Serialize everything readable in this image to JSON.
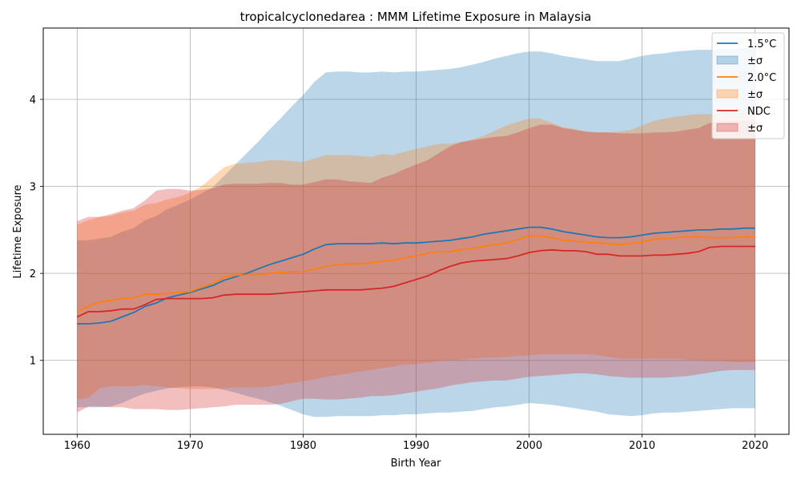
{
  "chart_data": {
    "type": "line",
    "title": "tropicalcyclonedarea : MMM Lifetime Exposure in Malaysia",
    "xlabel": "Birth Year",
    "ylabel": "Lifetime Exposure",
    "xlim": [
      1957,
      2023
    ],
    "ylim": [
      0.15,
      4.82
    ],
    "xticks": [
      1960,
      1970,
      1980,
      1990,
      2000,
      2010,
      2020
    ],
    "yticks": [
      1,
      2,
      3,
      4
    ],
    "grid": true,
    "legend_position": "top-right",
    "x": [
      1960,
      1961,
      1962,
      1963,
      1964,
      1965,
      1966,
      1967,
      1968,
      1969,
      1970,
      1971,
      1972,
      1973,
      1974,
      1975,
      1976,
      1977,
      1978,
      1979,
      1980,
      1981,
      1982,
      1983,
      1984,
      1985,
      1986,
      1987,
      1988,
      1989,
      1990,
      1991,
      1992,
      1993,
      1994,
      1995,
      1996,
      1997,
      1998,
      1999,
      2000,
      2001,
      2002,
      2003,
      2004,
      2005,
      2006,
      2007,
      2008,
      2009,
      2010,
      2011,
      2012,
      2013,
      2014,
      2015,
      2016,
      2017,
      2018,
      2019,
      2020
    ],
    "series": [
      {
        "name": "1.5°C",
        "band_label": "±σ",
        "color": "#1f77b4",
        "values": [
          1.42,
          1.42,
          1.43,
          1.45,
          1.5,
          1.55,
          1.62,
          1.66,
          1.72,
          1.75,
          1.78,
          1.82,
          1.86,
          1.92,
          1.96,
          2.0,
          2.05,
          2.1,
          2.14,
          2.18,
          2.22,
          2.28,
          2.33,
          2.34,
          2.34,
          2.34,
          2.34,
          2.35,
          2.34,
          2.35,
          2.35,
          2.36,
          2.37,
          2.38,
          2.4,
          2.42,
          2.45,
          2.47,
          2.49,
          2.51,
          2.53,
          2.53,
          2.51,
          2.48,
          2.46,
          2.44,
          2.42,
          2.41,
          2.41,
          2.42,
          2.44,
          2.46,
          2.47,
          2.48,
          2.49,
          2.5,
          2.5,
          2.51,
          2.51,
          2.52,
          2.52
        ],
        "upper": [
          2.38,
          2.38,
          2.4,
          2.42,
          2.48,
          2.52,
          2.61,
          2.66,
          2.74,
          2.79,
          2.85,
          2.92,
          2.99,
          3.12,
          3.25,
          3.38,
          3.51,
          3.65,
          3.78,
          3.92,
          4.05,
          4.2,
          4.31,
          4.32,
          4.32,
          4.31,
          4.31,
          4.32,
          4.31,
          4.32,
          4.32,
          4.33,
          4.34,
          4.35,
          4.37,
          4.4,
          4.43,
          4.47,
          4.5,
          4.53,
          4.55,
          4.55,
          4.53,
          4.5,
          4.48,
          4.46,
          4.44,
          4.44,
          4.44,
          4.47,
          4.5,
          4.52,
          4.53,
          4.55,
          4.56,
          4.57,
          4.57,
          4.58,
          4.58,
          4.59,
          4.59
        ],
        "lower": [
          0.46,
          0.46,
          0.46,
          0.47,
          0.51,
          0.57,
          0.62,
          0.65,
          0.68,
          0.69,
          0.7,
          0.7,
          0.69,
          0.66,
          0.63,
          0.59,
          0.56,
          0.52,
          0.48,
          0.43,
          0.38,
          0.35,
          0.35,
          0.36,
          0.36,
          0.36,
          0.36,
          0.37,
          0.37,
          0.38,
          0.38,
          0.39,
          0.4,
          0.4,
          0.41,
          0.42,
          0.44,
          0.46,
          0.47,
          0.49,
          0.51,
          0.5,
          0.49,
          0.47,
          0.45,
          0.43,
          0.41,
          0.38,
          0.37,
          0.36,
          0.37,
          0.39,
          0.4,
          0.4,
          0.41,
          0.42,
          0.43,
          0.44,
          0.45,
          0.45,
          0.45
        ]
      },
      {
        "name": "2.0°C",
        "band_label": "±σ",
        "color": "#ff7f0e",
        "values": [
          1.56,
          1.62,
          1.67,
          1.69,
          1.71,
          1.72,
          1.76,
          1.76,
          1.77,
          1.78,
          1.79,
          1.84,
          1.88,
          1.96,
          1.98,
          1.98,
          1.98,
          2.0,
          2.01,
          2.02,
          2.02,
          2.05,
          2.08,
          2.1,
          2.11,
          2.11,
          2.12,
          2.14,
          2.15,
          2.18,
          2.2,
          2.23,
          2.25,
          2.25,
          2.27,
          2.29,
          2.31,
          2.33,
          2.35,
          2.39,
          2.43,
          2.43,
          2.41,
          2.38,
          2.37,
          2.36,
          2.35,
          2.34,
          2.33,
          2.34,
          2.36,
          2.39,
          2.4,
          2.41,
          2.42,
          2.42,
          2.41,
          2.41,
          2.41,
          2.42,
          2.42
        ],
        "upper": [
          2.56,
          2.61,
          2.65,
          2.66,
          2.7,
          2.72,
          2.79,
          2.81,
          2.85,
          2.88,
          2.93,
          3.0,
          3.11,
          3.22,
          3.26,
          3.27,
          3.28,
          3.3,
          3.3,
          3.29,
          3.28,
          3.32,
          3.36,
          3.36,
          3.36,
          3.35,
          3.34,
          3.37,
          3.36,
          3.4,
          3.43,
          3.46,
          3.49,
          3.49,
          3.51,
          3.54,
          3.58,
          3.64,
          3.7,
          3.74,
          3.78,
          3.78,
          3.73,
          3.68,
          3.66,
          3.63,
          3.62,
          3.62,
          3.63,
          3.65,
          3.7,
          3.75,
          3.78,
          3.8,
          3.82,
          3.83,
          3.83,
          3.84,
          3.84,
          3.85,
          3.85
        ],
        "lower": [
          0.55,
          0.57,
          0.68,
          0.7,
          0.7,
          0.7,
          0.72,
          0.7,
          0.69,
          0.68,
          0.67,
          0.67,
          0.67,
          0.68,
          0.69,
          0.69,
          0.69,
          0.7,
          0.72,
          0.74,
          0.76,
          0.78,
          0.81,
          0.83,
          0.85,
          0.87,
          0.89,
          0.91,
          0.93,
          0.95,
          0.96,
          0.97,
          0.99,
          1.0,
          1.01,
          1.02,
          1.03,
          1.03,
          1.04,
          1.05,
          1.06,
          1.07,
          1.07,
          1.07,
          1.07,
          1.07,
          1.06,
          1.04,
          1.02,
          1.02,
          1.02,
          1.02,
          1.02,
          1.02,
          1.01,
          1.0,
          0.99,
          0.99,
          0.98,
          0.98,
          0.98
        ]
      },
      {
        "name": "NDC",
        "band_label": "±σ",
        "color": "#d62728",
        "values": [
          1.5,
          1.56,
          1.56,
          1.57,
          1.59,
          1.59,
          1.64,
          1.7,
          1.71,
          1.71,
          1.71,
          1.71,
          1.72,
          1.75,
          1.76,
          1.76,
          1.76,
          1.76,
          1.77,
          1.78,
          1.79,
          1.8,
          1.81,
          1.81,
          1.81,
          1.81,
          1.82,
          1.83,
          1.85,
          1.89,
          1.93,
          1.97,
          2.03,
          2.08,
          2.12,
          2.14,
          2.15,
          2.16,
          2.17,
          2.2,
          2.24,
          2.26,
          2.27,
          2.26,
          2.26,
          2.25,
          2.22,
          2.22,
          2.2,
          2.2,
          2.2,
          2.21,
          2.21,
          2.22,
          2.23,
          2.25,
          2.3,
          2.31,
          2.31,
          2.31,
          2.31
        ],
        "upper": [
          2.6,
          2.65,
          2.65,
          2.68,
          2.72,
          2.75,
          2.84,
          2.95,
          2.97,
          2.97,
          2.95,
          2.96,
          2.98,
          3.02,
          3.03,
          3.03,
          3.03,
          3.04,
          3.04,
          3.02,
          3.02,
          3.05,
          3.08,
          3.08,
          3.06,
          3.05,
          3.04,
          3.1,
          3.14,
          3.2,
          3.25,
          3.3,
          3.38,
          3.46,
          3.51,
          3.53,
          3.55,
          3.57,
          3.58,
          3.62,
          3.67,
          3.71,
          3.71,
          3.67,
          3.65,
          3.63,
          3.62,
          3.62,
          3.61,
          3.61,
          3.61,
          3.62,
          3.62,
          3.63,
          3.65,
          3.67,
          3.73,
          3.75,
          3.75,
          3.75,
          3.75
        ],
        "lower": [
          0.4,
          0.47,
          0.47,
          0.46,
          0.46,
          0.44,
          0.44,
          0.44,
          0.43,
          0.43,
          0.44,
          0.45,
          0.46,
          0.47,
          0.49,
          0.49,
          0.49,
          0.49,
          0.5,
          0.53,
          0.56,
          0.56,
          0.55,
          0.55,
          0.56,
          0.57,
          0.59,
          0.59,
          0.6,
          0.62,
          0.64,
          0.66,
          0.68,
          0.71,
          0.73,
          0.75,
          0.76,
          0.77,
          0.77,
          0.79,
          0.81,
          0.82,
          0.83,
          0.84,
          0.85,
          0.85,
          0.84,
          0.82,
          0.81,
          0.8,
          0.8,
          0.8,
          0.8,
          0.81,
          0.82,
          0.84,
          0.86,
          0.88,
          0.89,
          0.89,
          0.89
        ]
      }
    ]
  }
}
